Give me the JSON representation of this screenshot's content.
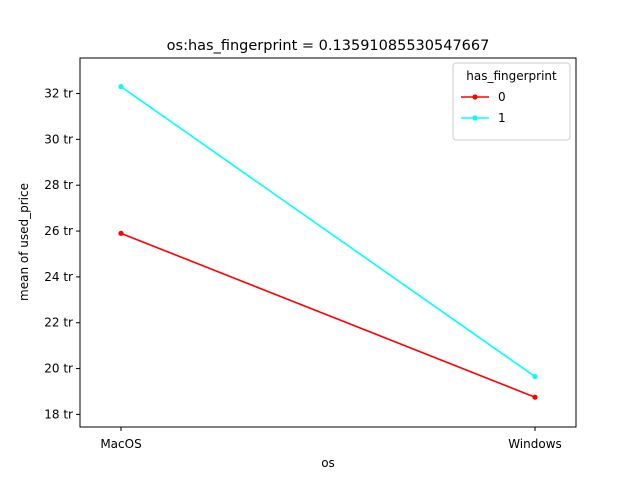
{
  "chart_data": {
    "type": "line",
    "title": "os:has_fingerprint = 0.13591085530547667",
    "xlabel": "os",
    "ylabel": "mean of used_price",
    "categories": [
      "MacOS",
      "Windows"
    ],
    "y_tick_values": [
      18,
      20,
      22,
      24,
      26,
      28,
      30,
      32
    ],
    "y_tick_labels": [
      "18 tr",
      "20 tr",
      "22 tr",
      "24 tr",
      "26 tr",
      "28 tr",
      "30 tr",
      "32 tr"
    ],
    "ylim": [
      17.45,
      33.55
    ],
    "grid": false,
    "legend": {
      "title": "has_fingerprint",
      "placement": "top-right"
    },
    "series": [
      {
        "name": "0",
        "color": "#ff0000",
        "values": [
          25.9,
          18.75
        ]
      },
      {
        "name": "1",
        "color": "#00ffff",
        "values": [
          32.3,
          19.65
        ]
      }
    ]
  }
}
